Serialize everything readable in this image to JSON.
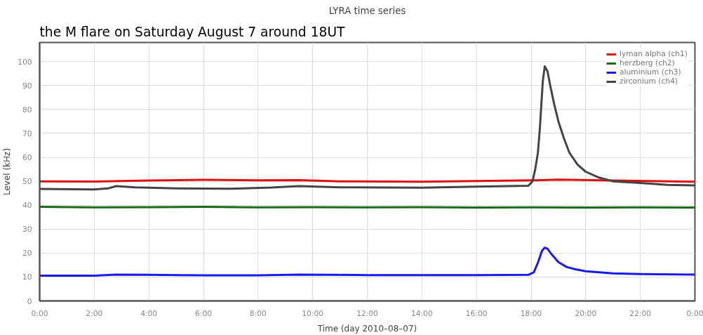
{
  "chart_data": {
    "type": "line",
    "title": "LYRA time series",
    "annotations": [
      "the M flare on Saturday August 7 around 18UT"
    ],
    "xlabel": "Time (day 2010–08–07)",
    "ylabel": "Level (kHz)",
    "xlim": [
      0,
      24
    ],
    "xticks": [
      {
        "value": 0,
        "label": "0:00"
      },
      {
        "value": 2,
        "label": "2:00"
      },
      {
        "value": 4,
        "label": "4:00"
      },
      {
        "value": 6,
        "label": "6:00"
      },
      {
        "value": 8,
        "label": "8:00"
      },
      {
        "value": 10,
        "label": "10:00"
      },
      {
        "value": 12,
        "label": "12:00"
      },
      {
        "value": 14,
        "label": "14:00"
      },
      {
        "value": 16,
        "label": "16:00"
      },
      {
        "value": 18,
        "label": "18:00"
      },
      {
        "value": 20,
        "label": "20:00"
      },
      {
        "value": 22,
        "label": "22:00"
      },
      {
        "value": 24,
        "label": "0:00"
      }
    ],
    "ylim": [
      0,
      108
    ],
    "yticks": [
      0,
      10,
      20,
      30,
      40,
      50,
      60,
      70,
      80,
      90,
      100
    ],
    "grid": true,
    "legend": "top right",
    "marker": "none",
    "line_style": "solid",
    "series": [
      {
        "name": "lyman alpha (ch1)",
        "color": "#dd1111",
        "x": [
          0,
          2,
          4,
          6,
          8,
          9.5,
          11,
          14,
          16,
          18,
          19,
          21,
          24
        ],
        "values": [
          50.0,
          49.9,
          50.3,
          50.6,
          50.4,
          50.5,
          50.0,
          49.8,
          50.1,
          50.4,
          50.7,
          50.3,
          49.8
        ]
      },
      {
        "name": "herzberg (ch2)",
        "color": "#1a6b1a",
        "x": [
          0,
          2,
          4,
          6,
          8,
          10,
          12,
          14,
          16,
          18,
          20,
          22,
          24
        ],
        "values": [
          39.3,
          39.1,
          39.2,
          39.3,
          39.1,
          39.2,
          39.1,
          39.2,
          39.0,
          39.1,
          39.0,
          39.1,
          39.0
        ]
      },
      {
        "name": "aluminium (ch3)",
        "color": "#1a1aee",
        "x": [
          0,
          2,
          2.8,
          4,
          6,
          8,
          9.5,
          12,
          16,
          17.9,
          18.1,
          18.25,
          18.4,
          18.5,
          18.6,
          18.75,
          19.0,
          19.3,
          19.6,
          20,
          21,
          22,
          24
        ],
        "values": [
          10.6,
          10.6,
          11.0,
          10.9,
          10.7,
          10.7,
          11.0,
          10.8,
          10.8,
          10.9,
          12.0,
          16.0,
          21.0,
          22.3,
          21.8,
          19.5,
          16.2,
          14.2,
          13.3,
          12.4,
          11.5,
          11.2,
          11.0
        ]
      },
      {
        "name": "zirconium (ch4)",
        "color": "#444444",
        "x": [
          0,
          2,
          2.5,
          2.8,
          3.5,
          5,
          7,
          8.5,
          9.5,
          11,
          14,
          16,
          17.9,
          18.05,
          18.15,
          18.25,
          18.32,
          18.38,
          18.43,
          18.5,
          18.6,
          18.7,
          18.85,
          19.0,
          19.2,
          19.4,
          19.7,
          20.0,
          20.5,
          21,
          22,
          23,
          24
        ],
        "values": [
          46.8,
          46.6,
          47.0,
          48.0,
          47.5,
          47.0,
          46.9,
          47.4,
          48.0,
          47.5,
          47.3,
          47.8,
          48.1,
          50,
          55,
          62,
          72,
          83,
          92,
          98,
          96,
          90,
          82,
          75,
          68,
          62,
          57,
          54,
          51.5,
          50,
          49.3,
          48.5,
          48.3
        ]
      }
    ]
  }
}
